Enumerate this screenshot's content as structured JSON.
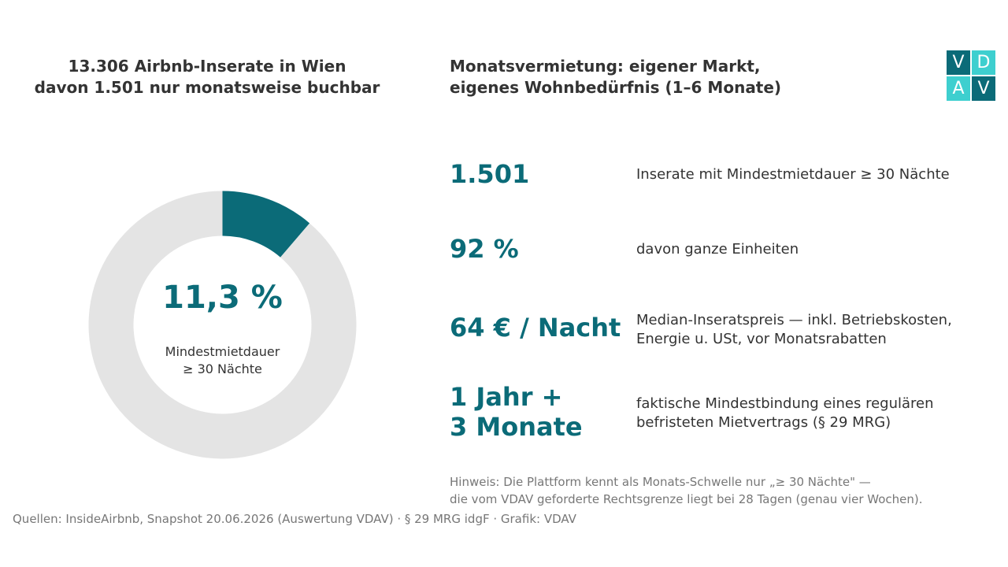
{
  "left_title": {
    "line1": "13.306 Airbnb-Inserate in Wien",
    "line2": "davon 1.501 nur monatsweise buchbar"
  },
  "right_title": {
    "line1": "Monatsvermietung: eigener Markt,",
    "line2": "eigenes Wohnbedürfnis (1–6 Monate)"
  },
  "logo": {
    "letters": [
      "V",
      "D",
      "A",
      "V"
    ]
  },
  "chart_data": {
    "type": "pie",
    "variant": "donut",
    "total": 13306,
    "slices": [
      {
        "value": 1501,
        "color": "#0b6b78"
      },
      {
        "value": 11805,
        "color": "#e4e4e4"
      }
    ],
    "center_value": "11,3 %",
    "center_caption_line1": "Mindestmietdauer",
    "center_caption_line2": "≥ 30 Nächte"
  },
  "stats": [
    {
      "value_line1": "1.501",
      "value_line2": "",
      "desc_line1": "Inserate mit Mindestmietdauer ≥ 30 Nächte",
      "desc_line2": ""
    },
    {
      "value_line1": "92 %",
      "value_line2": "",
      "desc_line1": "davon ganze Einheiten",
      "desc_line2": ""
    },
    {
      "value_line1": "64 € / Nacht",
      "value_line2": "",
      "desc_line1": "Median-Inseratspreis — inkl. Betriebskosten,",
      "desc_line2": "Energie u. USt, vor Monatsrabatten"
    },
    {
      "value_line1": "1 Jahr +",
      "value_line2": "3 Monate",
      "desc_line1": "faktische Mindestbindung eines regulären",
      "desc_line2": "befristeten Mietvertrags (§ 29 MRG)"
    }
  ],
  "hint": {
    "line1": "Hinweis: Die Plattform kennt als Monats-Schwelle nur „≥ 30 Nächte\" —",
    "line2": "die vom VDAV geforderte Rechtsgrenze liegt bei 28 Tagen (genau vier Wochen)."
  },
  "sources": "Quellen: InsideAirbnb, Snapshot 20.06.2026 (Auswertung VDAV) · § 29 MRG idgF · Grafik: VDAV",
  "colors": {
    "accent": "#0b6b78",
    "accent_light": "#3ecfcf",
    "ring_track": "#e4e4e4",
    "text": "#333333",
    "muted": "#777777"
  }
}
